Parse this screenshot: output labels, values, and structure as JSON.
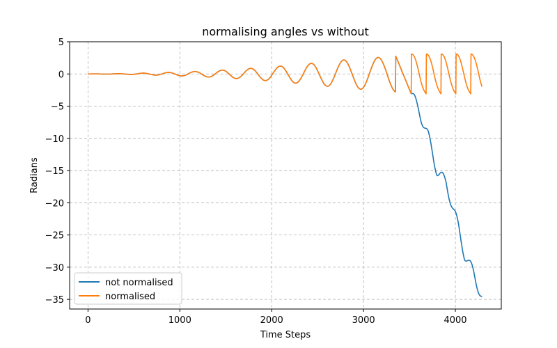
{
  "chart_data": {
    "type": "line",
    "title": "normalising angles vs without",
    "xlabel": "Time Steps",
    "ylabel": "Radians",
    "xlim": [
      -200,
      4500
    ],
    "ylim": [
      -36.5,
      5
    ],
    "xticks": [
      0,
      1000,
      2000,
      3000,
      4000
    ],
    "yticks": [
      5,
      0,
      -5,
      -10,
      -15,
      -20,
      -25,
      -30,
      -35
    ],
    "xtick_labels": [
      "0",
      "1000",
      "2000",
      "3000",
      "4000"
    ],
    "ytick_labels": [
      "5",
      "0",
      "−5",
      "−10",
      "−15",
      "−20",
      "−25",
      "−30",
      "−35"
    ],
    "grid": true,
    "legend_position": "lower-left",
    "series": [
      {
        "name": "not normalised",
        "color": "#1f77b4",
        "x": [
          0,
          400,
          800,
          1200,
          1600,
          2000,
          2400,
          2800,
          3200,
          3350,
          3450,
          3520,
          3600,
          3700,
          3800,
          3900,
          4000,
          4100,
          4200,
          4290
        ],
        "y": [
          0,
          0.05,
          0.2,
          0.4,
          0.7,
          1.1,
          1.6,
          2.2,
          2.6,
          2.8,
          0.5,
          -3.1,
          -5.5,
          -9.5,
          -15,
          -17,
          -22,
          -28,
          -31,
          -34.7
        ]
      },
      {
        "name": "normalised",
        "color": "#ff7f0e",
        "x": [
          0,
          400,
          800,
          1200,
          1600,
          2000,
          2400,
          2800,
          3200,
          3350,
          3450,
          3520,
          3700,
          3850,
          4000,
          4150,
          4290
        ],
        "y": [
          0,
          0.05,
          0.2,
          0.4,
          0.7,
          1.1,
          1.6,
          2.2,
          2.6,
          2.8,
          0.5,
          -3.1,
          3.1,
          3.1,
          3.1,
          3.1,
          3.0
        ]
      }
    ]
  }
}
